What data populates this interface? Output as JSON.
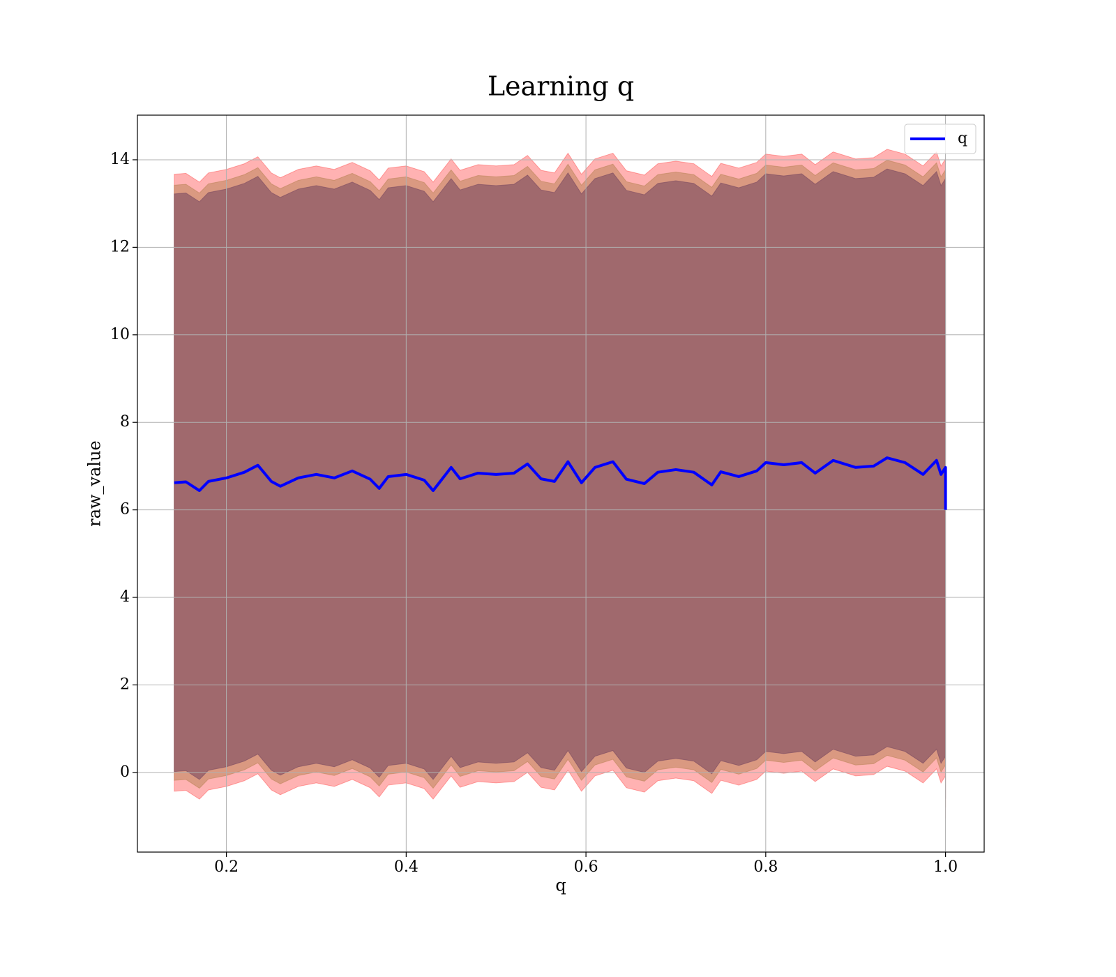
{
  "chart_data": {
    "type": "line",
    "title": "Learning q",
    "xlabel": "q",
    "ylabel": "raw_value",
    "x": [
      0.142,
      0.155,
      0.17,
      0.18,
      0.2,
      0.22,
      0.235,
      0.25,
      0.26,
      0.28,
      0.3,
      0.32,
      0.34,
      0.36,
      0.37,
      0.38,
      0.4,
      0.42,
      0.43,
      0.45,
      0.46,
      0.48,
      0.5,
      0.52,
      0.535,
      0.55,
      0.565,
      0.58,
      0.595,
      0.61,
      0.63,
      0.645,
      0.665,
      0.68,
      0.7,
      0.72,
      0.74,
      0.75,
      0.77,
      0.79,
      0.8,
      0.82,
      0.84,
      0.855,
      0.875,
      0.9,
      0.92,
      0.935,
      0.955,
      0.975,
      0.99,
      0.995,
      1.0,
      1.0
    ],
    "series": [
      {
        "name": "q",
        "color": "#0000ff",
        "values": [
          6.62,
          6.64,
          6.44,
          6.65,
          6.73,
          6.86,
          7.02,
          6.65,
          6.54,
          6.73,
          6.81,
          6.73,
          6.89,
          6.7,
          6.49,
          6.76,
          6.81,
          6.68,
          6.44,
          6.97,
          6.71,
          6.84,
          6.81,
          6.84,
          7.05,
          6.71,
          6.65,
          7.1,
          6.62,
          6.97,
          7.1,
          6.7,
          6.6,
          6.86,
          6.92,
          6.86,
          6.57,
          6.87,
          6.76,
          6.89,
          7.08,
          7.03,
          7.08,
          6.84,
          7.13,
          6.97,
          7.0,
          7.19,
          7.08,
          6.81,
          7.13,
          6.81,
          6.97,
          6.0
        ]
      }
    ],
    "bands": [
      {
        "color": "#ff0000",
        "opacity": 0.3,
        "upper": [
          13.67,
          13.69,
          13.49,
          13.7,
          13.78,
          13.91,
          14.07,
          13.7,
          13.59,
          13.78,
          13.86,
          13.78,
          13.94,
          13.75,
          13.54,
          13.81,
          13.86,
          13.73,
          13.49,
          14.02,
          13.76,
          13.89,
          13.86,
          13.89,
          14.1,
          13.76,
          13.7,
          14.15,
          13.67,
          14.02,
          14.15,
          13.75,
          13.65,
          13.91,
          13.97,
          13.91,
          13.62,
          13.92,
          13.81,
          13.94,
          14.13,
          14.08,
          14.13,
          13.89,
          14.18,
          14.02,
          14.05,
          14.24,
          14.13,
          13.86,
          14.18,
          13.86,
          14.02,
          13.05
        ],
        "lower": [
          -0.43,
          -0.41,
          -0.61,
          -0.4,
          -0.32,
          -0.19,
          -0.03,
          -0.4,
          -0.51,
          -0.32,
          -0.24,
          -0.32,
          -0.16,
          -0.35,
          -0.56,
          -0.29,
          -0.24,
          -0.37,
          -0.61,
          -0.08,
          -0.34,
          -0.21,
          -0.24,
          -0.21,
          0,
          -0.34,
          -0.4,
          0.05,
          -0.43,
          -0.08,
          0.05,
          -0.35,
          -0.45,
          -0.19,
          -0.13,
          -0.19,
          -0.48,
          -0.18,
          -0.29,
          -0.16,
          0.03,
          -0.02,
          0.03,
          -0.21,
          0.08,
          -0.08,
          -0.05,
          0.14,
          0.03,
          -0.24,
          0.08,
          -0.24,
          -0.08,
          -1.05
        ]
      },
      {
        "color": "#b5804f",
        "opacity": 0.5,
        "upper": [
          13.42,
          13.44,
          13.24,
          13.45,
          13.53,
          13.66,
          13.82,
          13.45,
          13.34,
          13.53,
          13.61,
          13.53,
          13.69,
          13.5,
          13.29,
          13.56,
          13.61,
          13.48,
          13.24,
          13.77,
          13.51,
          13.64,
          13.61,
          13.64,
          13.85,
          13.51,
          13.45,
          13.9,
          13.42,
          13.77,
          13.9,
          13.5,
          13.4,
          13.66,
          13.72,
          13.66,
          13.37,
          13.67,
          13.56,
          13.69,
          13.88,
          13.83,
          13.88,
          13.64,
          13.93,
          13.77,
          13.8,
          13.99,
          13.88,
          13.61,
          13.93,
          13.61,
          13.77,
          12.8
        ],
        "lower": [
          -0.18,
          -0.16,
          -0.36,
          -0.15,
          -0.07,
          0.06,
          0.22,
          -0.15,
          -0.26,
          -0.07,
          0.01,
          -0.07,
          0.09,
          -0.1,
          -0.31,
          -0.04,
          0.01,
          -0.12,
          -0.36,
          0.17,
          -0.09,
          0.04,
          0.01,
          0.04,
          0.25,
          -0.09,
          -0.15,
          0.3,
          -0.18,
          0.17,
          0.3,
          -0.1,
          -0.2,
          0.06,
          0.12,
          0.06,
          -0.23,
          0.07,
          -0.04,
          0.09,
          0.28,
          0.23,
          0.28,
          0.04,
          0.33,
          0.17,
          0.2,
          0.39,
          0.28,
          0.01,
          0.33,
          0.01,
          0.17,
          -0.8
        ]
      },
      {
        "color": "#7a4a60",
        "opacity": 0.6,
        "upper": [
          13.22,
          13.24,
          13.04,
          13.25,
          13.33,
          13.46,
          13.62,
          13.25,
          13.14,
          13.33,
          13.41,
          13.33,
          13.49,
          13.3,
          13.09,
          13.36,
          13.41,
          13.28,
          13.04,
          13.57,
          13.31,
          13.44,
          13.41,
          13.44,
          13.65,
          13.31,
          13.25,
          13.7,
          13.22,
          13.57,
          13.7,
          13.3,
          13.2,
          13.46,
          13.52,
          13.46,
          13.17,
          13.47,
          13.36,
          13.49,
          13.68,
          13.63,
          13.68,
          13.44,
          13.73,
          13.57,
          13.6,
          13.79,
          13.68,
          13.41,
          13.73,
          13.41,
          13.57,
          12.6
        ],
        "lower": [
          0.02,
          0.04,
          -0.16,
          0.05,
          0.13,
          0.26,
          0.42,
          0.05,
          -0.06,
          0.13,
          0.21,
          0.13,
          0.29,
          0.1,
          -0.11,
          0.16,
          0.21,
          0.08,
          -0.16,
          0.37,
          0.11,
          0.24,
          0.21,
          0.24,
          0.45,
          0.11,
          0.05,
          0.5,
          0.02,
          0.37,
          0.5,
          0.1,
          0,
          0.26,
          0.32,
          0.26,
          -0.03,
          0.27,
          0.16,
          0.29,
          0.48,
          0.43,
          0.48,
          0.24,
          0.53,
          0.37,
          0.4,
          0.59,
          0.48,
          0.21,
          0.53,
          0.21,
          0.37,
          -0.6
        ]
      }
    ],
    "xlim": [
      0.101,
      1.043
    ],
    "ylim": [
      -1.82,
      15.02
    ],
    "xticks": [
      0.2,
      0.4,
      0.6,
      0.8,
      {
        "value": 1,
        "label": "1.0"
      }
    ],
    "yticks": [
      0,
      2,
      4,
      6,
      8,
      10,
      12,
      14
    ],
    "grid": true,
    "legend": "upper right"
  }
}
